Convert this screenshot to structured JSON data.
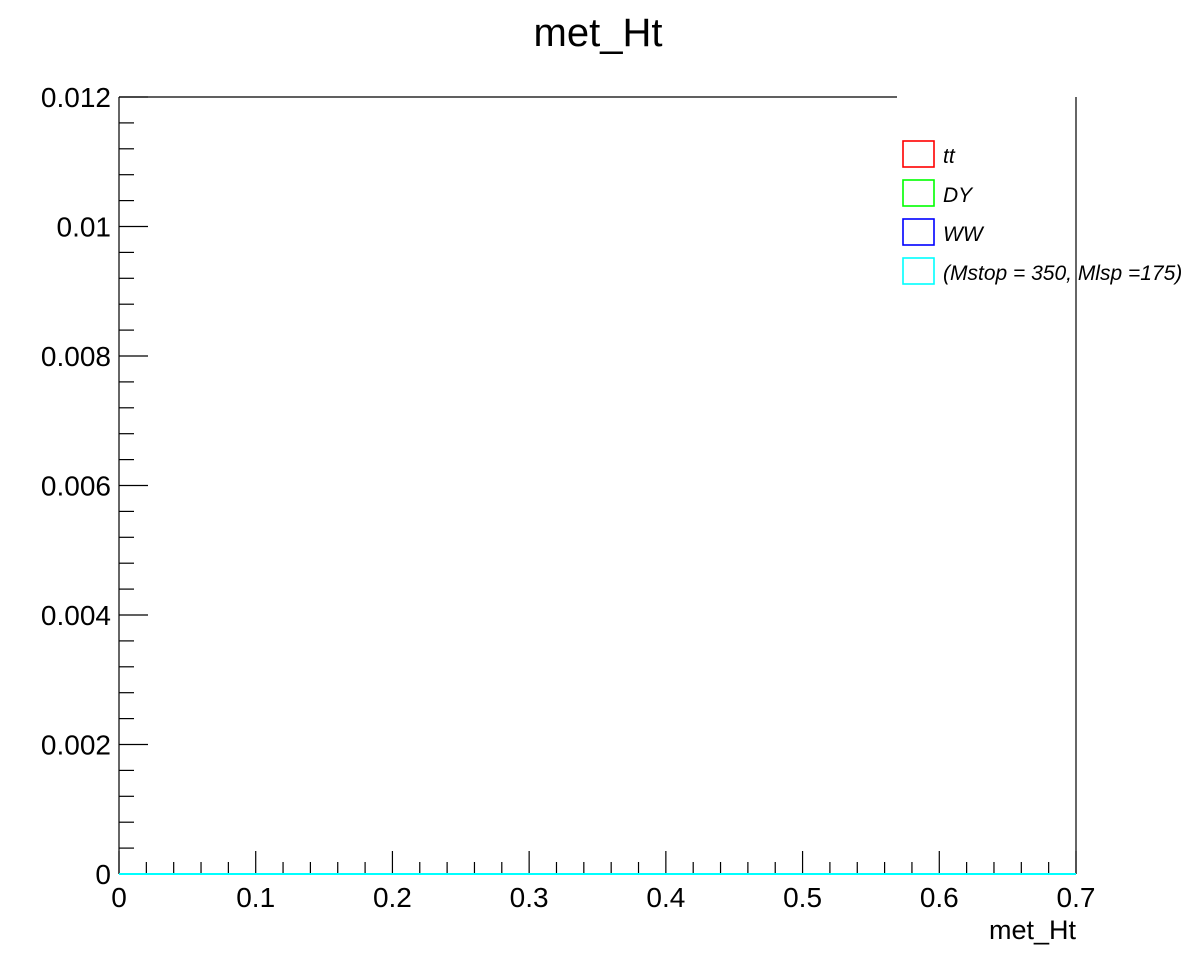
{
  "chart_data": {
    "type": "line",
    "title": "met_Ht",
    "xlabel": "met_Ht",
    "ylabel": "",
    "xlim": [
      0,
      0.7
    ],
    "ylim": [
      0,
      0.012
    ],
    "x_ticks": [
      "0",
      "0.1",
      "0.2",
      "0.3",
      "0.4",
      "0.5",
      "0.6",
      "0.7"
    ],
    "y_ticks": [
      "0",
      "0.002",
      "0.004",
      "0.006",
      "0.008",
      "0.01",
      "0.012"
    ],
    "grid": false,
    "legend_position": "top-right",
    "series": [
      {
        "name": "tt",
        "color": "#ff0000",
        "x": [
          0,
          0.7
        ],
        "values": [
          0,
          0
        ]
      },
      {
        "name": "DY",
        "color": "#00ff00",
        "x": [
          0,
          0.7
        ],
        "values": [
          0,
          0
        ]
      },
      {
        "name": "WW",
        "color": "#0000ff",
        "x": [
          0,
          0.7
        ],
        "values": [
          0,
          0
        ]
      },
      {
        "name": "(Mstop = 350, Mlsp =175)",
        "color": "#00ffff",
        "x": [
          0,
          0.7
        ],
        "values": [
          0,
          0
        ]
      }
    ]
  }
}
